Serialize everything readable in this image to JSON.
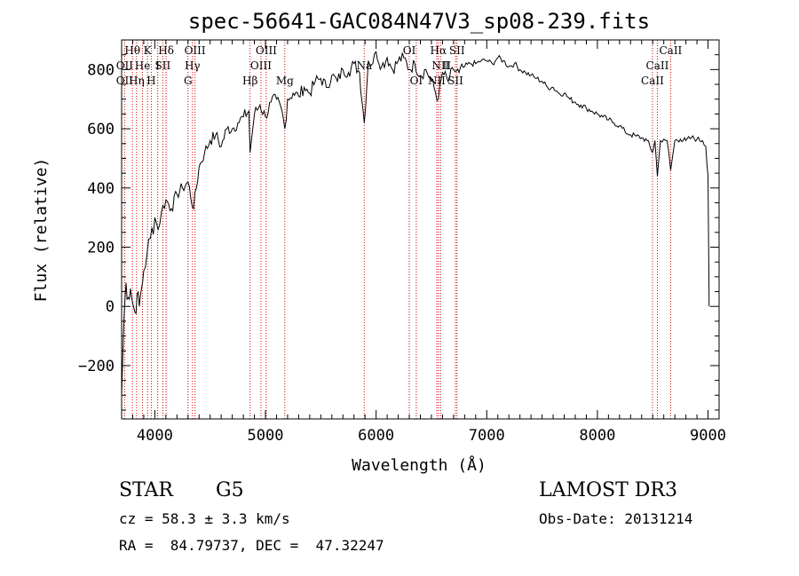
{
  "chart_data": {
    "type": "line",
    "title": "spec-56641-GAC084N47V3_sp08-239.fits",
    "xlabel": "Wavelength (Å)",
    "ylabel": "Flux (relative)",
    "xlim": [
      3700,
      9100
    ],
    "ylim": [
      -380,
      900
    ],
    "x_ticks": [
      4000,
      5000,
      6000,
      7000,
      8000,
      9000
    ],
    "y_ticks": [
      -200,
      0,
      200,
      400,
      600,
      800
    ],
    "line_color": "#000000",
    "marker_color": "#cc0000",
    "series": [
      {
        "name": "flux",
        "x": [
          3700,
          3720,
          3740,
          3760,
          3780,
          3800,
          3820,
          3840,
          3860,
          3880,
          3900,
          3930,
          3960,
          4000,
          4030,
          4060,
          4100,
          4150,
          4200,
          4250,
          4300,
          4350,
          4400,
          4450,
          4500,
          4550,
          4600,
          4650,
          4700,
          4750,
          4800,
          4850,
          4861,
          4900,
          4950,
          5000,
          5050,
          5100,
          5150,
          5175,
          5200,
          5250,
          5300,
          5350,
          5400,
          5450,
          5500,
          5550,
          5600,
          5650,
          5700,
          5750,
          5800,
          5850,
          5893,
          5930,
          5970,
          6000,
          6050,
          6100,
          6150,
          6200,
          6250,
          6300,
          6350,
          6400,
          6450,
          6500,
          6563,
          6600,
          6650,
          6700,
          6750,
          6800,
          6850,
          6900,
          6950,
          7000,
          7050,
          7100,
          7150,
          7200,
          7250,
          7300,
          7350,
          7400,
          7450,
          7500,
          7550,
          7600,
          7650,
          7700,
          7750,
          7800,
          7850,
          7900,
          7950,
          8000,
          8050,
          8100,
          8150,
          8200,
          8250,
          8300,
          8350,
          8400,
          8450,
          8498,
          8520,
          8542,
          8570,
          8600,
          8630,
          8662,
          8700,
          8750,
          8800,
          8850,
          8900,
          8950,
          8980,
          9000,
          9010
        ],
        "y": [
          -300,
          -50,
          80,
          30,
          60,
          10,
          -20,
          40,
          0,
          60,
          120,
          180,
          230,
          300,
          260,
          320,
          360,
          330,
          380,
          400,
          420,
          330,
          470,
          520,
          560,
          580,
          540,
          600,
          600,
          620,
          640,
          660,
          520,
          650,
          680,
          640,
          690,
          700,
          660,
          600,
          700,
          720,
          710,
          740,
          720,
          760,
          770,
          740,
          780,
          760,
          800,
          790,
          820,
          790,
          620,
          830,
          820,
          860,
          810,
          840,
          800,
          830,
          840,
          800,
          820,
          780,
          800,
          760,
          700,
          790,
          760,
          800,
          790,
          810,
          820,
          820,
          830,
          830,
          820,
          840,
          830,
          810,
          820,
          800,
          790,
          780,
          770,
          760,
          740,
          740,
          720,
          720,
          700,
          690,
          680,
          670,
          660,
          650,
          640,
          630,
          620,
          610,
          590,
          580,
          575,
          570,
          560,
          520,
          560,
          440,
          560,
          565,
          560,
          460,
          560,
          565,
          560,
          570,
          565,
          560,
          540,
          440,
          0
        ]
      }
    ],
    "spectral_lines": [
      {
        "label": "Hθ",
        "x": 3798,
        "row": 0
      },
      {
        "label": "K",
        "x": 3934,
        "row": 0
      },
      {
        "label": "Hδ",
        "x": 4102,
        "row": 0
      },
      {
        "label": "OIII",
        "x": 4363,
        "row": 0
      },
      {
        "label": "OIII",
        "x": 5007,
        "row": 0
      },
      {
        "label": "OI",
        "x": 6300,
        "row": 0
      },
      {
        "label": "Hα",
        "x": 6563,
        "row": 0
      },
      {
        "label": "SII",
        "x": 6731,
        "row": 0
      },
      {
        "label": "CaII",
        "x": 8662,
        "row": 0
      },
      {
        "label": "OII",
        "x": 3727,
        "row": 1
      },
      {
        "label": "He",
        "x": 3889,
        "row": 1
      },
      {
        "label": "I",
        "x": 4026,
        "row": 1
      },
      {
        "label": "SII",
        "x": 4072,
        "row": 1
      },
      {
        "label": "Hγ",
        "x": 4340,
        "row": 1
      },
      {
        "label": "OIII",
        "x": 4959,
        "row": 1
      },
      {
        "label": "Na",
        "x": 5893,
        "row": 1
      },
      {
        "label": "NII",
        "x": 6583,
        "row": 1
      },
      {
        "label": "II",
        "x": 6640,
        "row": 1
      },
      {
        "label": "CaII",
        "x": 8542,
        "row": 1
      },
      {
        "label": "OII",
        "x": 3727,
        "row": 2
      },
      {
        "label": "Hη",
        "x": 3835,
        "row": 2
      },
      {
        "label": "H",
        "x": 3968,
        "row": 2
      },
      {
        "label": "G",
        "x": 4300,
        "row": 2
      },
      {
        "label": "Hβ",
        "x": 4861,
        "row": 2
      },
      {
        "label": "Mg",
        "x": 5175,
        "row": 2
      },
      {
        "label": "OI",
        "x": 6363,
        "row": 2
      },
      {
        "label": "NII",
        "x": 6548,
        "row": 2
      },
      {
        "label": "SII",
        "x": 6717,
        "row": 2
      },
      {
        "label": "CaII",
        "x": 8498,
        "row": 2
      }
    ],
    "marker_wavelengths": [
      3727,
      3798,
      3835,
      3889,
      3934,
      3968,
      4026,
      4072,
      4102,
      4300,
      4340,
      4363,
      4861,
      4959,
      5007,
      5175,
      5893,
      6300,
      6363,
      6548,
      6563,
      6583,
      6717,
      6731,
      8498,
      8542,
      8662
    ]
  },
  "info": {
    "object_class": "STAR",
    "subclass": "G5",
    "survey": "LAMOST DR3",
    "cz": "cz = 58.3 ± 3.3 km/s",
    "obs_date": "Obs-Date: 20131214",
    "coords": "RA =  84.79737, DEC =  47.32247"
  }
}
